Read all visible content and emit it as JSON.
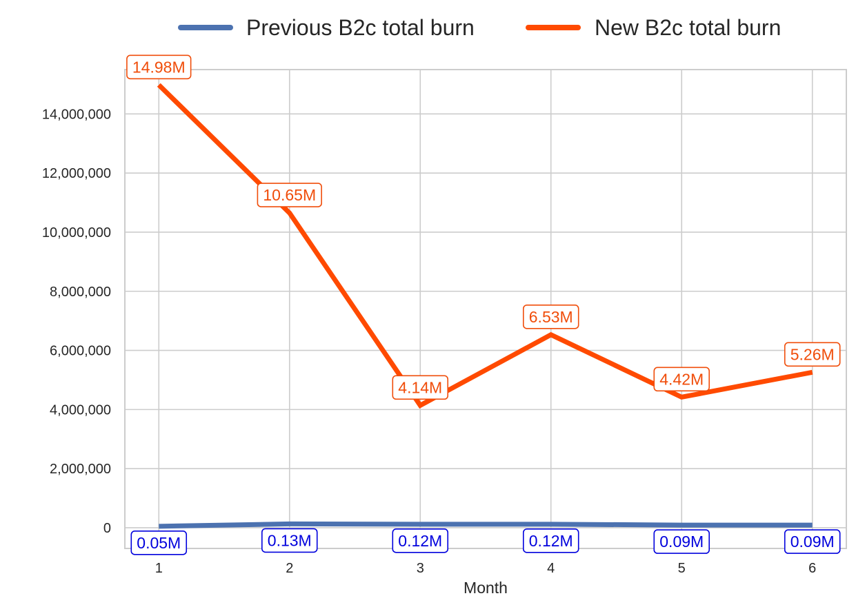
{
  "chart_data": {
    "type": "line",
    "title": "",
    "xlabel": "Month",
    "ylabel": "",
    "x": [
      1,
      2,
      3,
      4,
      5,
      6
    ],
    "x_tick_labels": [
      "1",
      "2",
      "3",
      "4",
      "5",
      "6"
    ],
    "ylim": [
      -700000,
      15500000
    ],
    "y_ticks": [
      0,
      2000000,
      4000000,
      6000000,
      8000000,
      10000000,
      12000000,
      14000000
    ],
    "y_tick_labels": [
      "0",
      "2,000,000",
      "4,000,000",
      "6,000,000",
      "8,000,000",
      "10,000,000",
      "12,000,000",
      "14,000,000"
    ],
    "grid": true,
    "legend_position": "top-center",
    "series": [
      {
        "name": "Previous B2c total burn",
        "color": "#4c72b0",
        "label_color": "#0000dd",
        "values": [
          50000,
          130000,
          120000,
          120000,
          90000,
          90000
        ],
        "data_labels": [
          "0.05M",
          "0.13M",
          "0.12M",
          "0.12M",
          "0.09M",
          "0.09M"
        ]
      },
      {
        "name": "New B2c total burn",
        "color": "#ff4a00",
        "label_color": "#f04d0a",
        "values": [
          14980000,
          10650000,
          4140000,
          6530000,
          4420000,
          5260000
        ],
        "data_labels": [
          "14.98M",
          "10.65M",
          "4.14M",
          "6.53M",
          "4.42M",
          "5.26M"
        ]
      }
    ]
  }
}
